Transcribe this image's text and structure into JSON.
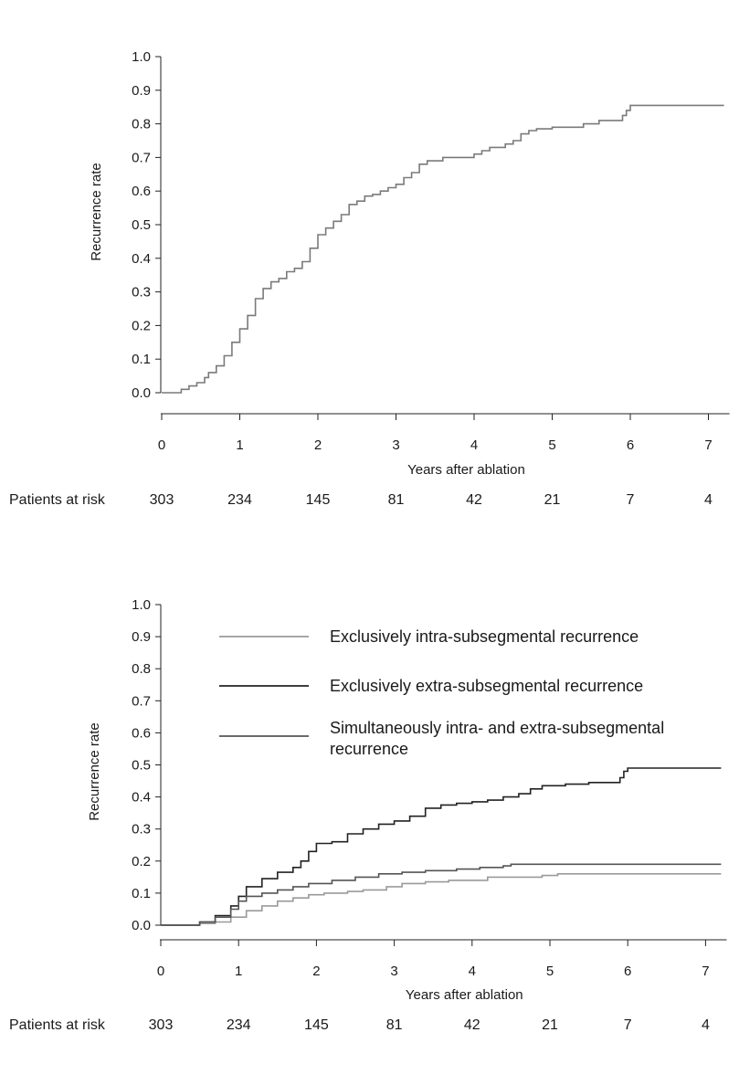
{
  "chart_data": [
    {
      "type": "line",
      "step": true,
      "xlabel": "Years after ablation",
      "ylabel": "Recurrence rate",
      "xlim": [
        0,
        7.2
      ],
      "ylim": [
        0,
        1.0
      ],
      "x_ticks": [
        "0",
        "1",
        "2",
        "3",
        "4",
        "5",
        "6",
        "7"
      ],
      "y_ticks": [
        "0.0",
        "0.1",
        "0.2",
        "0.3",
        "0.4",
        "0.5",
        "0.6",
        "0.7",
        "0.8",
        "0.9",
        "1.0"
      ],
      "grid": false,
      "colors": {
        "overall": "#7a7a7a"
      },
      "risk_table": {
        "label": "Patients at risk",
        "years": [
          0,
          1,
          2,
          3,
          4,
          5,
          6,
          7
        ],
        "counts": [
          "303",
          "234",
          "145",
          "81",
          "42",
          "21",
          "7",
          "4"
        ]
      },
      "series": [
        {
          "key": "overall",
          "points": [
            [
              0,
              0
            ],
            [
              0.2,
              0
            ],
            [
              0.25,
              0.01
            ],
            [
              0.35,
              0.02
            ],
            [
              0.45,
              0.03
            ],
            [
              0.55,
              0.045
            ],
            [
              0.6,
              0.06
            ],
            [
              0.7,
              0.08
            ],
            [
              0.8,
              0.11
            ],
            [
              0.9,
              0.15
            ],
            [
              1.0,
              0.19
            ],
            [
              1.1,
              0.23
            ],
            [
              1.2,
              0.28
            ],
            [
              1.3,
              0.31
            ],
            [
              1.4,
              0.33
            ],
            [
              1.5,
              0.34
            ],
            [
              1.6,
              0.36
            ],
            [
              1.7,
              0.37
            ],
            [
              1.8,
              0.39
            ],
            [
              1.9,
              0.43
            ],
            [
              2.0,
              0.47
            ],
            [
              2.1,
              0.49
            ],
            [
              2.2,
              0.51
            ],
            [
              2.3,
              0.53
            ],
            [
              2.4,
              0.56
            ],
            [
              2.5,
              0.57
            ],
            [
              2.6,
              0.585
            ],
            [
              2.7,
              0.59
            ],
            [
              2.8,
              0.6
            ],
            [
              2.9,
              0.61
            ],
            [
              3.0,
              0.62
            ],
            [
              3.1,
              0.64
            ],
            [
              3.2,
              0.655
            ],
            [
              3.3,
              0.68
            ],
            [
              3.4,
              0.69
            ],
            [
              3.6,
              0.7
            ],
            [
              3.9,
              0.7
            ],
            [
              4.0,
              0.71
            ],
            [
              4.1,
              0.72
            ],
            [
              4.2,
              0.73
            ],
            [
              4.4,
              0.74
            ],
            [
              4.5,
              0.75
            ],
            [
              4.6,
              0.77
            ],
            [
              4.7,
              0.78
            ],
            [
              4.8,
              0.785
            ],
            [
              5.0,
              0.79
            ],
            [
              5.4,
              0.8
            ],
            [
              5.6,
              0.81
            ],
            [
              5.9,
              0.825
            ],
            [
              5.95,
              0.84
            ],
            [
              6.0,
              0.855
            ],
            [
              7.2,
              0.855
            ]
          ]
        }
      ]
    },
    {
      "type": "line",
      "step": true,
      "xlabel": "Years after ablation",
      "ylabel": "Recurrence rate",
      "xlim": [
        0,
        7.2
      ],
      "ylim": [
        0,
        1.0
      ],
      "x_ticks": [
        "0",
        "1",
        "2",
        "3",
        "4",
        "5",
        "6",
        "7"
      ],
      "y_ticks": [
        "0.0",
        "0.1",
        "0.2",
        "0.3",
        "0.4",
        "0.5",
        "0.6",
        "0.7",
        "0.8",
        "0.9",
        "1.0"
      ],
      "grid": false,
      "legend_position": "top-right",
      "colors": {
        "intra": "#9a9a9a",
        "extra": "#222222",
        "both": "#555555"
      },
      "risk_table": {
        "label": "Patients at risk",
        "years": [
          0,
          1,
          2,
          3,
          4,
          5,
          6,
          7
        ],
        "counts": [
          "303",
          "234",
          "145",
          "81",
          "42",
          "21",
          "7",
          "4"
        ]
      },
      "series": [
        {
          "key": "intra",
          "name": "Exclusively intra-subsegmental recurrence",
          "points": [
            [
              0,
              0
            ],
            [
              0.3,
              0
            ],
            [
              0.5,
              0.005
            ],
            [
              0.7,
              0.01
            ],
            [
              0.9,
              0.025
            ],
            [
              1.1,
              0.045
            ],
            [
              1.3,
              0.06
            ],
            [
              1.5,
              0.075
            ],
            [
              1.7,
              0.085
            ],
            [
              1.9,
              0.095
            ],
            [
              2.1,
              0.1
            ],
            [
              2.4,
              0.105
            ],
            [
              2.6,
              0.11
            ],
            [
              2.9,
              0.12
            ],
            [
              3.1,
              0.13
            ],
            [
              3.4,
              0.135
            ],
            [
              3.7,
              0.14
            ],
            [
              4.0,
              0.14
            ],
            [
              4.2,
              0.15
            ],
            [
              4.9,
              0.155
            ],
            [
              5.1,
              0.16
            ],
            [
              7.2,
              0.16
            ]
          ]
        },
        {
          "key": "extra",
          "name": "Exclusively extra-subsegmental recurrence",
          "points": [
            [
              0,
              0
            ],
            [
              0.3,
              0
            ],
            [
              0.5,
              0.01
            ],
            [
              0.7,
              0.03
            ],
            [
              0.9,
              0.06
            ],
            [
              1.0,
              0.09
            ],
            [
              1.1,
              0.12
            ],
            [
              1.3,
              0.145
            ],
            [
              1.5,
              0.165
            ],
            [
              1.7,
              0.18
            ],
            [
              1.8,
              0.2
            ],
            [
              1.9,
              0.23
            ],
            [
              2.0,
              0.255
            ],
            [
              2.2,
              0.26
            ],
            [
              2.4,
              0.285
            ],
            [
              2.6,
              0.3
            ],
            [
              2.8,
              0.315
            ],
            [
              3.0,
              0.325
            ],
            [
              3.2,
              0.34
            ],
            [
              3.4,
              0.365
            ],
            [
              3.6,
              0.375
            ],
            [
              3.8,
              0.38
            ],
            [
              4.0,
              0.385
            ],
            [
              4.2,
              0.39
            ],
            [
              4.4,
              0.4
            ],
            [
              4.6,
              0.41
            ],
            [
              4.75,
              0.425
            ],
            [
              4.9,
              0.435
            ],
            [
              5.2,
              0.44
            ],
            [
              5.5,
              0.445
            ],
            [
              5.9,
              0.46
            ],
            [
              5.95,
              0.48
            ],
            [
              6.0,
              0.49
            ],
            [
              7.2,
              0.49
            ]
          ]
        },
        {
          "key": "both",
          "name": "Simultaneously intra- and extra-subsegmental recurrence",
          "points": [
            [
              0,
              0
            ],
            [
              0.3,
              0
            ],
            [
              0.5,
              0.01
            ],
            [
              0.7,
              0.025
            ],
            [
              0.9,
              0.05
            ],
            [
              1.0,
              0.075
            ],
            [
              1.1,
              0.09
            ],
            [
              1.3,
              0.1
            ],
            [
              1.5,
              0.11
            ],
            [
              1.7,
              0.12
            ],
            [
              1.9,
              0.13
            ],
            [
              2.2,
              0.14
            ],
            [
              2.5,
              0.15
            ],
            [
              2.8,
              0.16
            ],
            [
              3.1,
              0.165
            ],
            [
              3.4,
              0.17
            ],
            [
              3.8,
              0.175
            ],
            [
              4.1,
              0.18
            ],
            [
              4.4,
              0.185
            ],
            [
              4.5,
              0.19
            ],
            [
              7.2,
              0.19
            ]
          ]
        }
      ]
    }
  ]
}
